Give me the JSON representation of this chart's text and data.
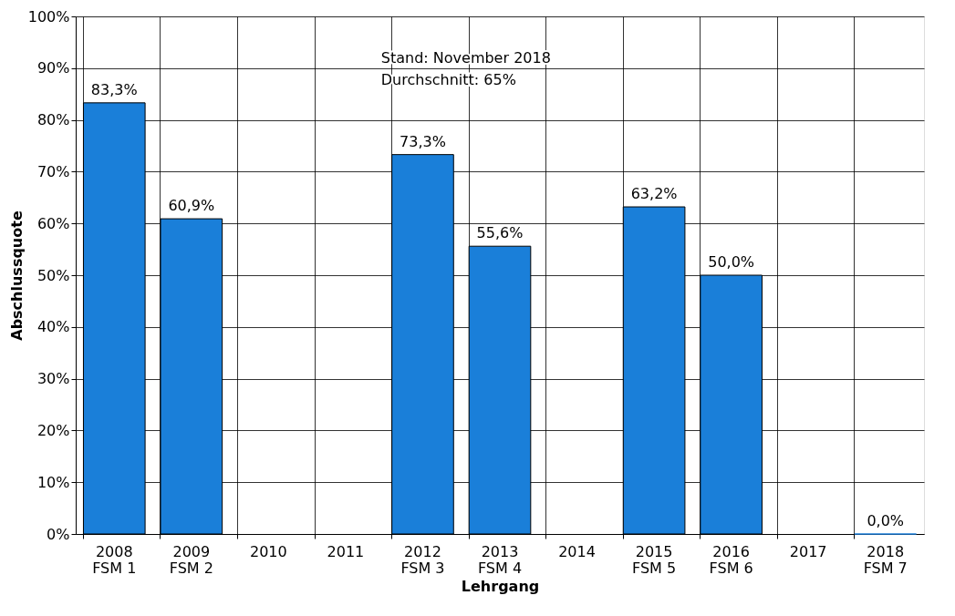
{
  "chart_data": {
    "type": "bar",
    "xlabel": "Lehrgang",
    "ylabel": "Abschlussquote",
    "categories": [
      "2008\nFSM 1",
      "2009\nFSM 2",
      "2010",
      "2011",
      "2012\nFSM 3",
      "2013\nFSM 4",
      "2014",
      "2015\nFSM 5",
      "2016\nFSM 6",
      "2017",
      "2018\nFSM 7"
    ],
    "values": [
      83.3,
      60.9,
      null,
      null,
      73.3,
      55.6,
      null,
      63.2,
      50.0,
      null,
      0.0
    ],
    "value_labels": [
      "83,3%",
      "60,9%",
      null,
      null,
      "73,3%",
      "55,6%",
      null,
      "63,2%",
      "50,0%",
      null,
      "0,0%"
    ],
    "color": "#1a7fd9",
    "ylim": [
      0,
      100
    ],
    "yticks": [
      {
        "value": 0,
        "label": "0%"
      },
      {
        "value": 10,
        "label": "10%"
      },
      {
        "value": 20,
        "label": "20%"
      },
      {
        "value": 30,
        "label": "30%"
      },
      {
        "value": 40,
        "label": "40%"
      },
      {
        "value": 50,
        "label": "50%"
      },
      {
        "value": 60,
        "label": "60%"
      },
      {
        "value": 70,
        "label": "70%"
      },
      {
        "value": 80,
        "label": "80%"
      },
      {
        "value": 90,
        "label": "90%"
      },
      {
        "value": 100,
        "label": "100%"
      }
    ],
    "grid": true,
    "annotations": [
      "Stand: November 2018",
      "Durchschnitt: 65%"
    ]
  }
}
